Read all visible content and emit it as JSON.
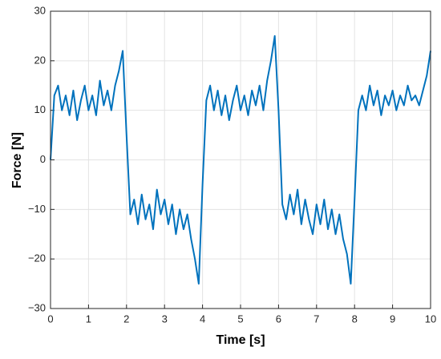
{
  "chart_data": {
    "type": "line",
    "xlabel": "Time [s]",
    "ylabel": "Force [N]",
    "x": [
      0,
      0.1,
      0.2,
      0.3,
      0.4,
      0.5,
      0.6,
      0.7,
      0.8,
      0.9,
      1,
      1.1,
      1.2,
      1.3,
      1.4,
      1.5,
      1.6,
      1.7,
      1.8,
      1.9,
      2,
      2.1,
      2.2,
      2.3,
      2.4,
      2.5,
      2.6,
      2.7,
      2.8,
      2.9,
      3,
      3.1,
      3.2,
      3.3,
      3.4,
      3.5,
      3.6,
      3.7,
      3.8,
      3.9,
      4,
      4.1,
      4.2,
      4.3,
      4.4,
      4.5,
      4.6,
      4.7,
      4.8,
      4.9,
      5,
      5.1,
      5.2,
      5.3,
      5.4,
      5.5,
      5.6,
      5.7,
      5.8,
      5.9,
      6,
      6.1,
      6.2,
      6.3,
      6.4,
      6.5,
      6.6,
      6.7,
      6.8,
      6.9,
      7,
      7.1,
      7.2,
      7.3,
      7.4,
      7.5,
      7.6,
      7.7,
      7.8,
      7.9,
      8,
      8.1,
      8.2,
      8.3,
      8.4,
      8.5,
      8.6,
      8.7,
      8.8,
      8.9,
      9,
      9.1,
      9.2,
      9.3,
      9.4,
      9.5,
      9.6,
      9.7,
      9.8,
      9.9,
      10
    ],
    "series": [
      {
        "color": "#0072bd",
        "values": [
          0,
          13,
          15,
          10,
          13,
          9,
          14,
          8,
          12,
          15,
          10,
          13,
          9,
          16,
          11,
          14,
          10,
          15,
          18,
          22,
          5,
          -11,
          -8,
          -13,
          -7,
          -12,
          -9,
          -14,
          -6,
          -11,
          -8,
          -13,
          -9,
          -15,
          -10,
          -14,
          -11,
          -16,
          -20,
          -25,
          -5,
          12,
          15,
          10,
          14,
          9,
          13,
          8,
          12,
          15,
          10,
          13,
          9,
          14,
          11,
          15,
          10,
          16,
          20,
          25,
          10,
          -9,
          -12,
          -7,
          -11,
          -6,
          -13,
          -8,
          -12,
          -15,
          -9,
          -13,
          -8,
          -14,
          -10,
          -15,
          -11,
          -16,
          -19,
          -25,
          -8,
          10,
          13,
          10,
          15,
          11,
          14,
          9,
          13,
          11,
          14,
          10,
          13,
          11,
          15,
          12,
          13,
          11,
          14,
          17,
          22
        ]
      }
    ],
    "xlim": [
      0,
      10
    ],
    "xticks": [
      0,
      1,
      2,
      3,
      4,
      5,
      6,
      7,
      8,
      9,
      10
    ],
    "ylim": [
      -30,
      30
    ],
    "yticks": [
      {
        "value": -30,
        "label": "−30"
      },
      {
        "value": -20,
        "label": "−20"
      },
      {
        "value": -10,
        "label": "−10"
      },
      0,
      10,
      20,
      30
    ],
    "grid": true
  }
}
